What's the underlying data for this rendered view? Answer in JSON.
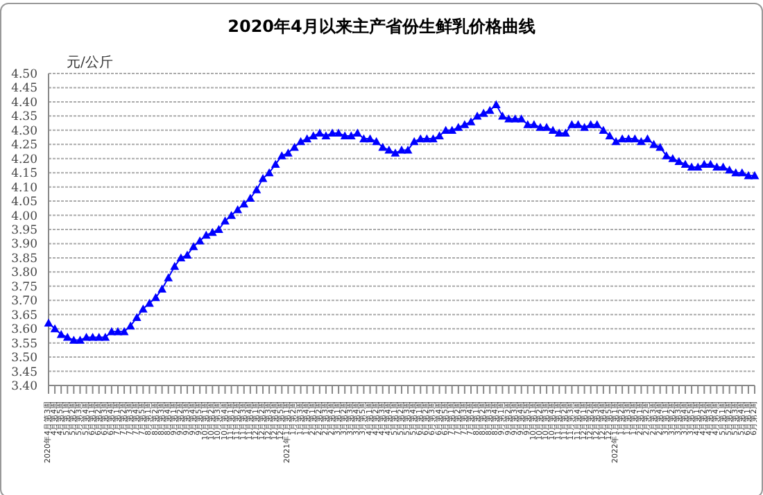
{
  "chart_data": {
    "type": "line",
    "title": "2020年4月以来主产省份生鲜乳价格曲线",
    "ylabel": "元/公斤",
    "categories": [
      "2020年4月第3周",
      "4月第4周",
      "4月第5周",
      "5月第1周",
      "5月第2周",
      "5月第3周",
      "5月第4周",
      "6月第1周",
      "6月第2周",
      "6月第3周",
      "6月第4周",
      "7月第1周",
      "7月第2周",
      "7月第3周",
      "7月第4周",
      "7月第5周",
      "8月第1周",
      "8月第2周",
      "8月第3周",
      "8月第4周",
      "9月第1周",
      "9月第2周",
      "9月第3周",
      "9月第4周",
      "9月第5周",
      "10月第1周",
      "10月第2周",
      "10月第3周",
      "10月第4周",
      "11月第1周",
      "11月第2周",
      "11月第3周",
      "11月第4周",
      "12月第1周",
      "12月第2周",
      "12月第3周",
      "12月第4周",
      "12月第5周",
      "2021年1月第1周",
      "1月第2周",
      "1月第3周",
      "1月第4周",
      "2月第1周",
      "2月第2周",
      "2月第3周",
      "2月第4周",
      "3月第1周",
      "3月第2周",
      "3月第3周",
      "3月第4周",
      "3月第5周",
      "4月第1周",
      "4月第2周",
      "4月第3周",
      "4月第4周",
      "5月第1周",
      "5月第2周",
      "5月第3周",
      "5月第4周",
      "6月第1周",
      "6月第2周",
      "6月第3周",
      "6月第4周",
      "6月第5周",
      "7月第1周",
      "7月第2周",
      "7月第3周",
      "7月第4周",
      "8月第1周",
      "8月第2周",
      "8月第3周",
      "8月第4周",
      "9月第1周",
      "9月第2周",
      "9月第3周",
      "9月第4周",
      "9月第5周",
      "10月第1周",
      "10月第2周",
      "10月第3周",
      "10月第4周",
      "11月第1周",
      "11月第2周",
      "11月第3周",
      "11月第4周",
      "12月第1周",
      "12月第2周",
      "12月第3周",
      "12月第4周",
      "12月第5周",
      "2022年1月第1周",
      "1月第2周",
      "1月第3周",
      "1月第4周",
      "2月第1周",
      "2月第2周",
      "2月第3周",
      "2月第4周",
      "3月第1周",
      "3月第2周",
      "3月第3周",
      "3月第4周",
      "3月第5周",
      "4月第1周",
      "4月第2周",
      "4月第3周",
      "4月第4周",
      "5月第1周",
      "5月第2周",
      "5月第3周",
      "5月第4周",
      "6月第1周",
      "6月第2周"
    ],
    "values": [
      3.62,
      3.6,
      3.58,
      3.57,
      3.56,
      3.56,
      3.57,
      3.57,
      3.57,
      3.57,
      3.59,
      3.59,
      3.59,
      3.61,
      3.64,
      3.67,
      3.69,
      3.71,
      3.74,
      3.78,
      3.82,
      3.85,
      3.86,
      3.89,
      3.91,
      3.93,
      3.94,
      3.95,
      3.98,
      4.0,
      4.02,
      4.04,
      4.06,
      4.09,
      4.13,
      4.15,
      4.18,
      4.21,
      4.22,
      4.24,
      4.26,
      4.27,
      4.28,
      4.29,
      4.28,
      4.29,
      4.29,
      4.28,
      4.28,
      4.29,
      4.27,
      4.27,
      4.26,
      4.24,
      4.23,
      4.22,
      4.23,
      4.23,
      4.26,
      4.27,
      4.27,
      4.27,
      4.28,
      4.3,
      4.3,
      4.31,
      4.32,
      4.33,
      4.35,
      4.36,
      4.37,
      4.39,
      4.35,
      4.34,
      4.34,
      4.34,
      4.32,
      4.32,
      4.31,
      4.31,
      4.3,
      4.29,
      4.29,
      4.32,
      4.32,
      4.31,
      4.32,
      4.32,
      4.3,
      4.28,
      4.26,
      4.27,
      4.27,
      4.27,
      4.26,
      4.27,
      4.25,
      4.24,
      4.21,
      4.2,
      4.19,
      4.18,
      4.17,
      4.17,
      4.18,
      4.18,
      4.17,
      4.17,
      4.16,
      4.15,
      4.15,
      4.14,
      4.14
    ],
    "color": "#0000ff",
    "marker": "triangle",
    "line_style": "solid",
    "grid": "y",
    "ylim": [
      3.4,
      4.5
    ],
    "yticks": [
      {
        "value": 3.4,
        "label": "3.40"
      },
      {
        "value": 3.45,
        "label": "3.45"
      },
      {
        "value": 3.5,
        "label": "3.50"
      },
      {
        "value": 3.55,
        "label": "3.55"
      },
      {
        "value": 3.6,
        "label": "3.60"
      },
      {
        "value": 3.65,
        "label": "3.65"
      },
      {
        "value": 3.7,
        "label": "3.70"
      },
      {
        "value": 3.75,
        "label": "3.75"
      },
      {
        "value": 3.8,
        "label": "3.80"
      },
      {
        "value": 3.85,
        "label": "3.85"
      },
      {
        "value": 3.9,
        "label": "3.90"
      },
      {
        "value": 3.95,
        "label": "3.95"
      },
      {
        "value": 4.0,
        "label": "4.00"
      },
      {
        "value": 4.05,
        "label": "4.05"
      },
      {
        "value": 4.1,
        "label": "4.10"
      },
      {
        "value": 4.15,
        "label": "4.15"
      },
      {
        "value": 4.2,
        "label": "4.20"
      },
      {
        "value": 4.25,
        "label": "4.25"
      },
      {
        "value": 4.3,
        "label": "4.30"
      },
      {
        "value": 4.35,
        "label": "4.35"
      },
      {
        "value": 4.4,
        "label": "4.40"
      },
      {
        "value": 4.45,
        "label": "4.45"
      },
      {
        "value": 4.5,
        "label": "4.50"
      }
    ]
  }
}
